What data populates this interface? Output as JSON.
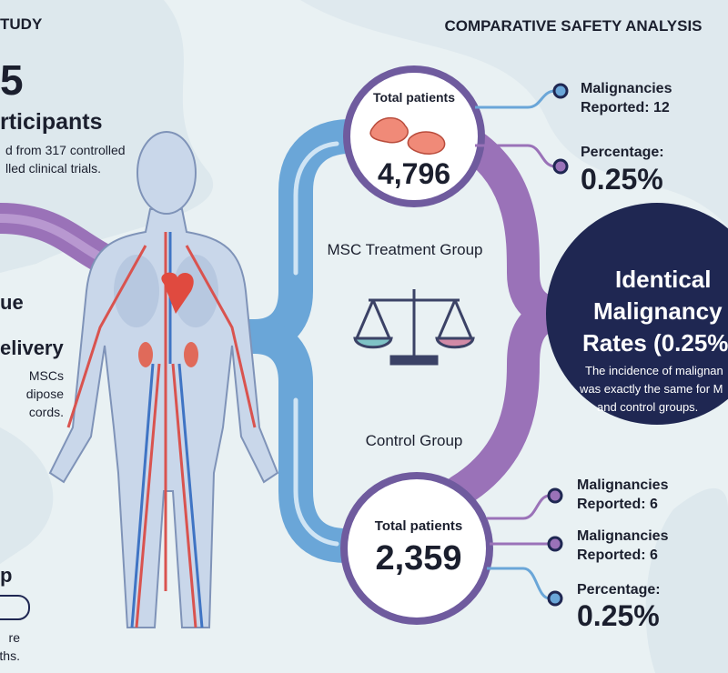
{
  "left_panel": {
    "heading": "TUDY",
    "count": "5",
    "count_label": "rticipants",
    "description": [
      "d from 317 controlled",
      "lled clinical trials."
    ],
    "section_title": [
      "ue",
      "elivery"
    ],
    "section_text": [
      "MSCs",
      "dipose",
      "cords."
    ],
    "bottom_title": "p",
    "bottom_text": [
      "re",
      "ths."
    ]
  },
  "comparison": {
    "title": "COMPARATIVE SAFETY ANALYSIS",
    "treatment": {
      "label": "MSC Treatment Group",
      "patients_label": "Total patients",
      "patients": "4,796",
      "stats": [
        {
          "label": "Malignancies",
          "value": "Reported: 12"
        },
        {
          "label": "Percentage:",
          "value": "0.25%"
        }
      ]
    },
    "control": {
      "label": "Control Group",
      "patients_label": "Total patients",
      "patients": "2,359",
      "stats": [
        {
          "label": "Malignancies",
          "value": "Reported: 6"
        },
        {
          "label": "Malignancies",
          "value": "Reported: 6"
        },
        {
          "label": "Percentage:",
          "value": "0.25%"
        }
      ]
    }
  },
  "conclusion": {
    "title": [
      "Identical",
      "Malignancy",
      "Rates (0.25%"
    ],
    "text": [
      "The incidence of malignan",
      "was exactly the same for M",
      "and control groups."
    ]
  }
}
